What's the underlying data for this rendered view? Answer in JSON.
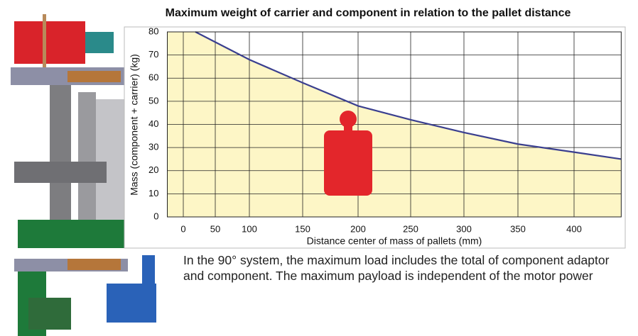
{
  "chart_data": {
    "type": "area-line",
    "title": "Maximum weight of carrier and component in relation to the pallet distance",
    "x_label": "Distance center of mass of pallets (mm)",
    "y_label": "Mass (component + carrier) (kg)",
    "x": [
      19,
      100,
      150,
      200,
      250,
      300,
      350,
      400,
      442
    ],
    "values": [
      80,
      68,
      58,
      48,
      42,
      36.5,
      31.5,
      28,
      25
    ],
    "color": "#3a3f8f",
    "fill": "#fdf6c6",
    "xlim": [
      -25,
      442
    ],
    "xticks": [
      0,
      50,
      100,
      150,
      200,
      250,
      300,
      350,
      400
    ],
    "ylim": [
      0,
      80
    ],
    "yticks": [
      0,
      10,
      20,
      30,
      40,
      50,
      60,
      70,
      80
    ],
    "grid": true
  },
  "caption": "In the 90° system, the maximum load includes the total of component adaptor and component. The maximum payload is independent of the motor power"
}
